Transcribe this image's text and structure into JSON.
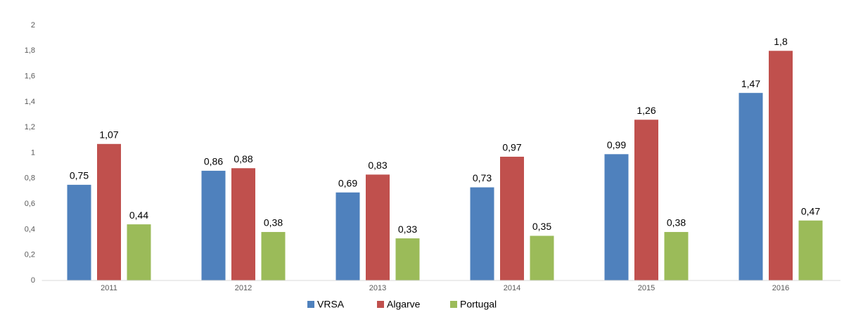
{
  "chart_data": {
    "type": "bar",
    "categories": [
      "2011",
      "2012",
      "2013",
      "2014",
      "2015",
      "2016"
    ],
    "series": [
      {
        "name": "VRSA",
        "color": "#4f81bd",
        "values": [
          0.75,
          0.86,
          0.69,
          0.73,
          0.99,
          1.47
        ],
        "value_labels": [
          "0,75",
          "0,86",
          "0,69",
          "0,73",
          "0,99",
          "1,47"
        ]
      },
      {
        "name": "Algarve",
        "color": "#c0504d",
        "values": [
          1.07,
          0.88,
          0.83,
          0.97,
          1.26,
          1.8
        ],
        "value_labels": [
          "1,07",
          "0,88",
          "0,83",
          "0,97",
          "1,26",
          "1,8"
        ]
      },
      {
        "name": "Portugal",
        "color": "#9bbb59",
        "values": [
          0.44,
          0.38,
          0.33,
          0.35,
          0.38,
          0.47
        ],
        "value_labels": [
          "0,44",
          "0,38",
          "0,33",
          "0,35",
          "0,38",
          "0,47"
        ]
      }
    ],
    "ylim": [
      0,
      2
    ],
    "yticks": [
      0,
      {
        "value": 0.2,
        "label": "0,2"
      },
      {
        "value": 0.4,
        "label": "0,4"
      },
      {
        "value": 0.6,
        "label": "0,6"
      },
      {
        "value": 0.8,
        "label": "0,8"
      },
      1,
      {
        "value": 1.2,
        "label": "1,2"
      },
      {
        "value": 1.4,
        "label": "1,4"
      },
      {
        "value": 1.6,
        "label": "1,6"
      },
      {
        "value": 1.8,
        "label": "1,8"
      },
      2
    ],
    "grid": false,
    "legend": "bottom"
  }
}
